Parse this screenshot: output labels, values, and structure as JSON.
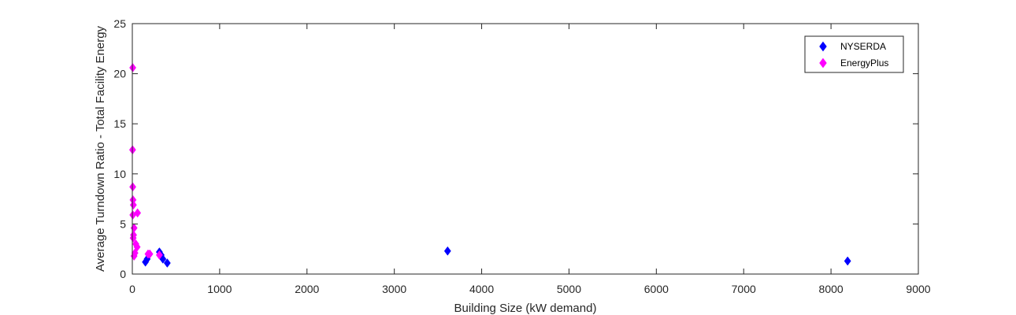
{
  "chart_data": {
    "type": "scatter",
    "xlabel": "Building Size (kW demand)",
    "ylabel": "Average Turndown Ratio - Total Facility Energy",
    "xlim": [
      0,
      9000
    ],
    "ylim": [
      0,
      25
    ],
    "xticks": [
      0,
      1000,
      2000,
      3000,
      4000,
      5000,
      6000,
      7000,
      8000,
      9000
    ],
    "yticks": [
      0,
      5,
      10,
      15,
      20,
      25
    ],
    "grid": false,
    "legend_position": "top-right",
    "series": [
      {
        "name": "NYSERDA",
        "color": "#0000ff",
        "marker": "diamond",
        "points": [
          [
            150,
            1.2
          ],
          [
            170,
            1.5
          ],
          [
            190,
            1.9
          ],
          [
            310,
            2.2
          ],
          [
            330,
            1.9
          ],
          [
            350,
            1.5
          ],
          [
            400,
            1.1
          ],
          [
            3610,
            2.3
          ],
          [
            8190,
            1.3
          ]
        ]
      },
      {
        "name": "EnergyPlus",
        "color": "#ff00ff",
        "marker": "diamond",
        "points": [
          [
            5,
            20.6
          ],
          [
            3,
            12.4
          ],
          [
            5,
            8.7
          ],
          [
            8,
            7.4
          ],
          [
            12,
            6.9
          ],
          [
            6,
            5.9
          ],
          [
            60,
            6.1
          ],
          [
            20,
            4.6
          ],
          [
            14,
            3.9
          ],
          [
            10,
            3.6
          ],
          [
            40,
            3.0
          ],
          [
            55,
            2.7
          ],
          [
            30,
            2.1
          ],
          [
            20,
            1.8
          ],
          [
            180,
            2.0
          ],
          [
            200,
            2.0
          ],
          [
            310,
            1.9
          ]
        ]
      }
    ]
  }
}
